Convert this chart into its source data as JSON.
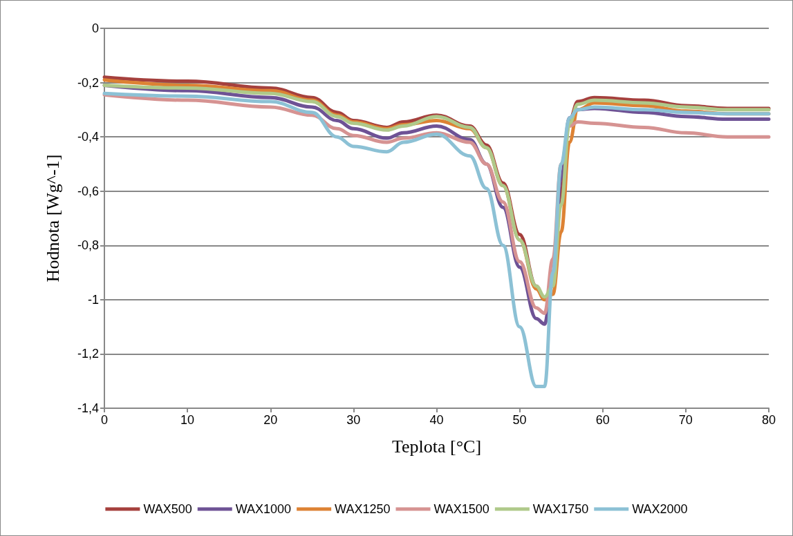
{
  "chart_data": {
    "type": "line",
    "xlabel": "Teplota [°C]",
    "ylabel": "Hodnota [Wg^-1]",
    "x": [
      0,
      10,
      20,
      25,
      28,
      30,
      34,
      36,
      40,
      44,
      46,
      48,
      50,
      52,
      53,
      54,
      55,
      56,
      57,
      59,
      65,
      70,
      75,
      80
    ],
    "xlim": [
      0,
      80
    ],
    "xticks": [
      0,
      10,
      20,
      30,
      40,
      50,
      60,
      70,
      80
    ],
    "ylim": [
      -1.4,
      0
    ],
    "yticks": [
      {
        "value": -1.4,
        "label": "-1,4"
      },
      {
        "value": -1.2,
        "label": "-1,2"
      },
      {
        "value": -1,
        "label": "-1"
      },
      {
        "value": -0.8,
        "label": "-0,8"
      },
      {
        "value": -0.6,
        "label": "-0,6"
      },
      {
        "value": -0.4,
        "label": "-0,4"
      },
      {
        "value": -0.2,
        "label": "-0,2"
      },
      {
        "value": 0,
        "label": "0"
      }
    ],
    "grid": "y",
    "legend": "bottom",
    "marker": "none",
    "line_style": "solid",
    "series": [
      {
        "name": "WAX500",
        "color": "#a5403d",
        "values": [
          -0.18,
          -0.195,
          -0.22,
          -0.255,
          -0.31,
          -0.34,
          -0.365,
          -0.345,
          -0.32,
          -0.36,
          -0.43,
          -0.57,
          -0.76,
          -0.95,
          -1.0,
          -0.95,
          -0.6,
          -0.34,
          -0.27,
          -0.255,
          -0.265,
          -0.285,
          -0.295,
          -0.295
        ]
      },
      {
        "name": "WAX1000",
        "color": "#6e5295",
        "values": [
          -0.21,
          -0.23,
          -0.255,
          -0.29,
          -0.34,
          -0.37,
          -0.405,
          -0.385,
          -0.36,
          -0.41,
          -0.5,
          -0.66,
          -0.88,
          -1.07,
          -1.09,
          -0.9,
          -0.55,
          -0.33,
          -0.3,
          -0.295,
          -0.31,
          -0.325,
          -0.335,
          -0.335
        ]
      },
      {
        "name": "WAX1250",
        "color": "#dd8234",
        "values": [
          -0.19,
          -0.21,
          -0.23,
          -0.265,
          -0.32,
          -0.345,
          -0.37,
          -0.355,
          -0.34,
          -0.37,
          -0.44,
          -0.58,
          -0.78,
          -0.96,
          -1.0,
          -0.98,
          -0.75,
          -0.42,
          -0.3,
          -0.275,
          -0.285,
          -0.305,
          -0.315,
          -0.315
        ]
      },
      {
        "name": "WAX1500",
        "color": "#d69392",
        "values": [
          -0.245,
          -0.265,
          -0.29,
          -0.32,
          -0.37,
          -0.395,
          -0.42,
          -0.405,
          -0.385,
          -0.42,
          -0.5,
          -0.64,
          -0.86,
          -1.03,
          -1.05,
          -0.85,
          -0.5,
          -0.36,
          -0.345,
          -0.35,
          -0.365,
          -0.385,
          -0.4,
          -0.4
        ]
      },
      {
        "name": "WAX1750",
        "color": "#afc98a",
        "values": [
          -0.21,
          -0.22,
          -0.24,
          -0.27,
          -0.325,
          -0.35,
          -0.375,
          -0.36,
          -0.325,
          -0.365,
          -0.44,
          -0.58,
          -0.78,
          -0.95,
          -0.99,
          -0.95,
          -0.65,
          -0.35,
          -0.28,
          -0.265,
          -0.275,
          -0.29,
          -0.3,
          -0.3
        ]
      },
      {
        "name": "WAX2000",
        "color": "#8cc1d5",
        "values": [
          -0.24,
          -0.25,
          -0.27,
          -0.31,
          -0.4,
          -0.435,
          -0.455,
          -0.42,
          -0.39,
          -0.47,
          -0.59,
          -0.8,
          -1.1,
          -1.32,
          -1.32,
          -0.9,
          -0.5,
          -0.33,
          -0.3,
          -0.29,
          -0.3,
          -0.31,
          -0.315,
          -0.315
        ]
      }
    ]
  }
}
